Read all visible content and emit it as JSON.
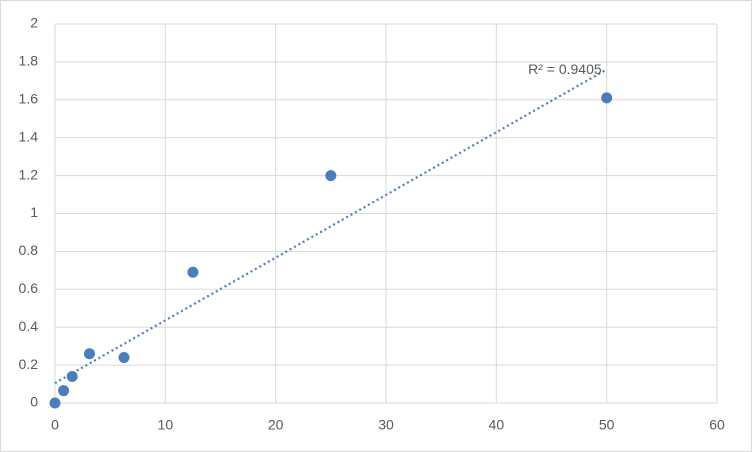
{
  "chart_data": {
    "type": "scatter",
    "series": [
      {
        "color": "#4a7ebb",
        "x": [
          0,
          0.78,
          1.56,
          3.125,
          6.25,
          12.5,
          25,
          50
        ],
        "values": [
          0,
          0.065,
          0.14,
          0.26,
          0.24,
          0.69,
          1.2,
          1.61
        ]
      }
    ],
    "trendline": {
      "x": [
        0,
        50
      ],
      "values": [
        0.105,
        1.76
      ],
      "color": "#4a7ebb",
      "style": "dotted"
    },
    "annotation": "R² = 0.9405",
    "xlim": [
      0,
      60
    ],
    "xticks": [
      0,
      10,
      20,
      30,
      40,
      50,
      60
    ],
    "ylim": [
      0,
      2
    ],
    "yticks": [
      0,
      0.2,
      0.4,
      0.6,
      0.8,
      1,
      1.2,
      1.4,
      1.6,
      1.8,
      2
    ],
    "grid": true
  }
}
